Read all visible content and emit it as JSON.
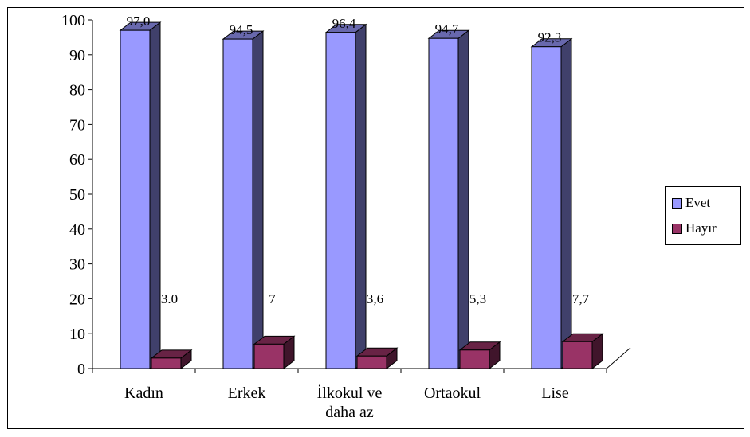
{
  "chart_data": {
    "type": "bar",
    "categories": [
      "Kadın",
      "Erkek",
      "İlkokul ve daha az",
      "Ortaokul",
      "Lise"
    ],
    "category_labels": [
      [
        "Kadın"
      ],
      [
        "Erkek"
      ],
      [
        "İlkokul ve",
        "daha az"
      ],
      [
        "Ortaokul"
      ],
      [
        "Lise"
      ]
    ],
    "series": [
      {
        "name": "Evet",
        "values": [
          97.0,
          94.5,
          96.4,
          94.7,
          92.3
        ],
        "labels": [
          "97,0",
          "94,5",
          "96,4",
          "94,7",
          "92,3"
        ],
        "color": "#9999ff"
      },
      {
        "name": "Hayır",
        "values": [
          3.0,
          7,
          3.6,
          5.3,
          7.7
        ],
        "labels": [
          "3.0",
          "7",
          "3,6",
          "5,3",
          "7,7"
        ],
        "color": "#993366"
      }
    ],
    "ylim": [
      0,
      100
    ],
    "yticks": [
      0,
      10,
      20,
      30,
      40,
      50,
      60,
      70,
      80,
      90,
      100
    ],
    "grid": false,
    "legend_position": "right",
    "three_d": true
  }
}
